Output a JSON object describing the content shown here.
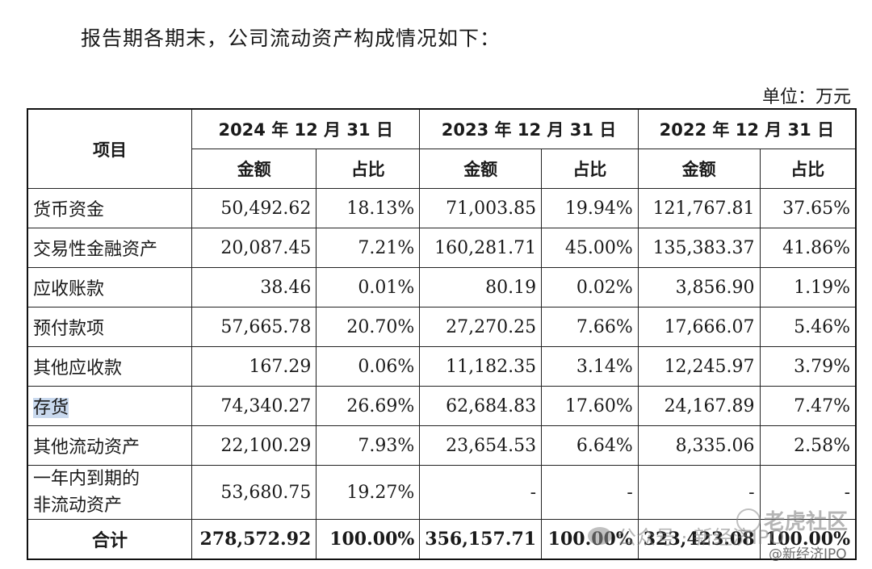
{
  "intro_text": "报告期各期末，公司流动资产构成情况如下：",
  "unit_text": "单位：万元",
  "table": {
    "item_header": "项目",
    "periods": [
      "2024 年 12 月 31 日",
      "2023 年 12 月 31 日",
      "2022 年 12 月 31 日"
    ],
    "amount_header": "金额",
    "ratio_header": "占比",
    "rows": [
      {
        "label": "货币资金",
        "values": [
          "50,492.62",
          "18.13%",
          "71,003.85",
          "19.94%",
          "121,767.81",
          "37.65%"
        ]
      },
      {
        "label": "交易性金融资产",
        "values": [
          "20,087.45",
          "7.21%",
          "160,281.71",
          "45.00%",
          "135,383.37",
          "41.86%"
        ]
      },
      {
        "label": "应收账款",
        "values": [
          "38.46",
          "0.01%",
          "80.19",
          "0.02%",
          "3,856.90",
          "1.19%"
        ]
      },
      {
        "label": "预付款项",
        "values": [
          "57,665.78",
          "20.70%",
          "27,270.25",
          "7.66%",
          "17,666.07",
          "5.46%"
        ]
      },
      {
        "label": "其他应收款",
        "values": [
          "167.29",
          "0.06%",
          "11,182.35",
          "3.14%",
          "12,245.97",
          "3.79%"
        ]
      },
      {
        "label": "存货",
        "values": [
          "74,340.27",
          "26.69%",
          "62,684.83",
          "17.60%",
          "24,167.89",
          "7.47%"
        ]
      },
      {
        "label": "其他流动资产",
        "values": [
          "22,100.29",
          "7.93%",
          "23,654.53",
          "6.64%",
          "8,335.06",
          "2.58%"
        ]
      },
      {
        "label_line1": "一年内到期的",
        "label_line2": "非流动资产",
        "values": [
          "53,680.75",
          "19.27%",
          "-",
          "-",
          "-",
          "-"
        ]
      }
    ],
    "total": {
      "label": "合计",
      "values": [
        "278,572.92",
        "100.00%",
        "356,157.71",
        "100.00%",
        "323,423.08",
        "100.00%"
      ]
    }
  },
  "highlight_color": "#c9d9ee",
  "watermarks": {
    "wechat": "公众号 · 新经济IPO",
    "community": "老虎社区",
    "handle": "@新经济IPO"
  }
}
